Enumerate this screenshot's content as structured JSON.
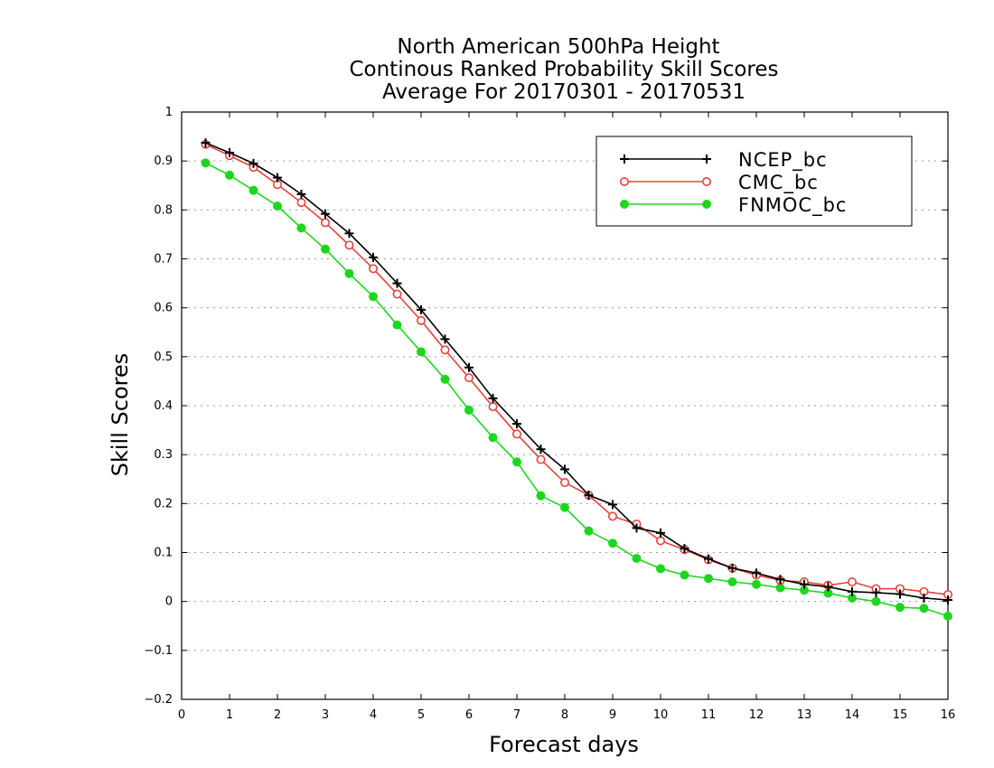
{
  "chart_data": {
    "type": "line",
    "title": [
      "North American 500hPa Height",
      "Continous Ranked Probability Skill Scores",
      "Average For 20170301 - 20170531"
    ],
    "xlabel": "Forecast days",
    "ylabel": "Skill Scores",
    "xlim": [
      0,
      16
    ],
    "ylim": [
      -0.2,
      1
    ],
    "xticks": [
      0,
      1,
      2,
      3,
      4,
      5,
      6,
      7,
      8,
      9,
      10,
      11,
      12,
      13,
      14,
      15,
      16
    ],
    "yticks": [
      -0.2,
      -0.1,
      0,
      0.1,
      0.2,
      0.3,
      0.4,
      0.5,
      0.6,
      0.7,
      0.8,
      0.9,
      1
    ],
    "ytick_labels": [
      "−0.2",
      "−0.1",
      "0",
      "0.1",
      "0.2",
      "0.3",
      "0.4",
      "0.5",
      "0.6",
      "0.7",
      "0.8",
      "0.9",
      "1"
    ],
    "grid": "horizontal-dotted",
    "legend_position": "top-right",
    "x": [
      0.5,
      1,
      1.5,
      2,
      2.5,
      3,
      3.5,
      4,
      4.5,
      5,
      5.5,
      6,
      6.5,
      7,
      7.5,
      8,
      8.5,
      9,
      9.5,
      10,
      10.5,
      11,
      11.5,
      12,
      12.5,
      13,
      13.5,
      14,
      14.5,
      15,
      15.5,
      16
    ],
    "series": [
      {
        "name": "NCEP_bc",
        "color": "#000000",
        "marker": "plus",
        "values": [
          0.937,
          0.917,
          0.895,
          0.866,
          0.832,
          0.792,
          0.752,
          0.703,
          0.65,
          0.596,
          0.536,
          0.478,
          0.415,
          0.363,
          0.311,
          0.27,
          0.217,
          0.198,
          0.15,
          0.14,
          0.108,
          0.087,
          0.068,
          0.058,
          0.045,
          0.035,
          0.03,
          0.02,
          0.018,
          0.015,
          0.007,
          0.003
        ]
      },
      {
        "name": "CMC_bc",
        "color": "#e8423c",
        "marker": "open-circle",
        "values": [
          0.934,
          0.911,
          0.887,
          0.852,
          0.815,
          0.774,
          0.728,
          0.68,
          0.628,
          0.574,
          0.514,
          0.457,
          0.398,
          0.342,
          0.29,
          0.243,
          0.217,
          0.174,
          0.158,
          0.124,
          0.106,
          0.085,
          0.068,
          0.054,
          0.043,
          0.04,
          0.033,
          0.04,
          0.026,
          0.026,
          0.02,
          0.014
        ]
      },
      {
        "name": "FNMOC_bc",
        "color": "#1fd61f",
        "marker": "filled-circle",
        "values": [
          0.896,
          0.871,
          0.84,
          0.808,
          0.763,
          0.72,
          0.67,
          0.623,
          0.565,
          0.51,
          0.454,
          0.391,
          0.335,
          0.285,
          0.216,
          0.192,
          0.144,
          0.119,
          0.088,
          0.067,
          0.054,
          0.047,
          0.04,
          0.035,
          0.028,
          0.023,
          0.017,
          0.007,
          0.0,
          -0.012,
          -0.014,
          -0.03
        ]
      }
    ]
  }
}
